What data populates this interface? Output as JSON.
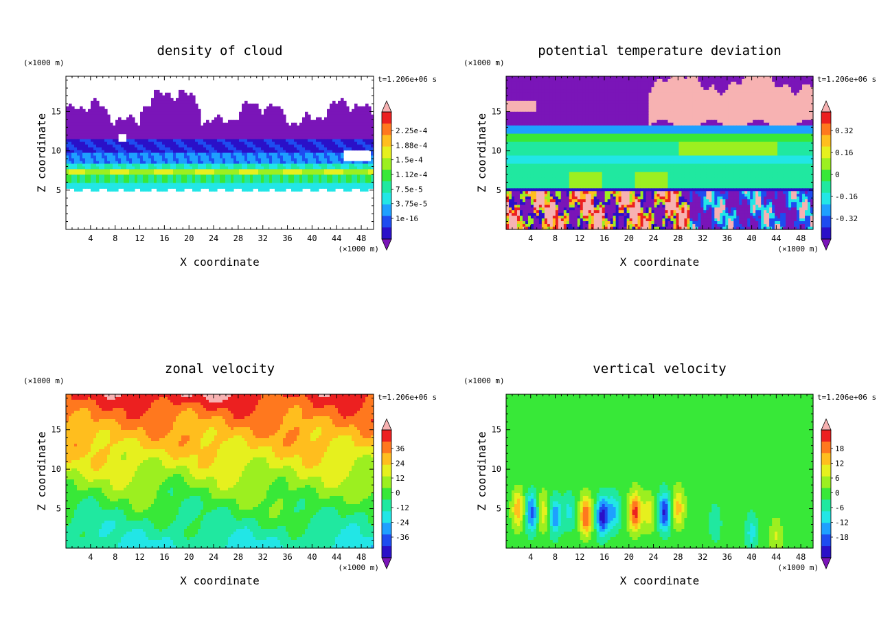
{
  "chart_data": [
    {
      "type": "heatmap",
      "title": "density of cloud",
      "xlabel": "X coordinate",
      "ylabel": "Z coordinate",
      "x_unit": "(×1000 m)",
      "y_unit": "(×1000 m)",
      "time_label": "t=1.206e+06 s",
      "xlim": [
        0,
        50
      ],
      "ylim": [
        0,
        19.5
      ],
      "x_ticks": [
        "4",
        "8",
        "12",
        "16",
        "20",
        "24",
        "28",
        "32",
        "36",
        "40",
        "44",
        "48"
      ],
      "y_ticks": [
        "5",
        "10",
        "15"
      ],
      "colorbar": {
        "labels": [
          "2.25e-4",
          "1.88e-4",
          "1.5e-4",
          "1.12e-4",
          "7.5e-5",
          "3.75e-5",
          "1e-16"
        ],
        "levels": [
          0.000225,
          0.000188,
          0.00015,
          0.000112,
          7.5e-05,
          3.75e-05,
          1e-16
        ]
      },
      "field": "cloud"
    },
    {
      "type": "heatmap",
      "title": "potential temperature deviation",
      "xlabel": "X coordinate",
      "ylabel": "Z coordinate",
      "x_unit": "(×1000 m)",
      "y_unit": "(×1000 m)",
      "time_label": "t=1.206e+06 s",
      "xlim": [
        0,
        50
      ],
      "ylim": [
        0,
        19.5
      ],
      "x_ticks": [
        "4",
        "8",
        "12",
        "16",
        "20",
        "24",
        "28",
        "32",
        "36",
        "40",
        "44",
        "48"
      ],
      "y_ticks": [
        "5",
        "10",
        "15"
      ],
      "colorbar": {
        "labels": [
          "0.32",
          "0.16",
          "0",
          "-0.16",
          "-0.32"
        ],
        "levels": [
          0.32,
          0.16,
          0,
          -0.16,
          -0.32
        ]
      },
      "field": "theta"
    },
    {
      "type": "heatmap",
      "title": "zonal velocity",
      "xlabel": "X coordinate",
      "ylabel": "Z coordinate",
      "x_unit": "(×1000 m)",
      "y_unit": "(×1000 m)",
      "time_label": "t=1.206e+06 s",
      "xlim": [
        0,
        50
      ],
      "ylim": [
        0,
        19.5
      ],
      "x_ticks": [
        "4",
        "8",
        "12",
        "16",
        "20",
        "24",
        "28",
        "32",
        "36",
        "40",
        "44",
        "48"
      ],
      "y_ticks": [
        "5",
        "10",
        "15"
      ],
      "colorbar": {
        "labels": [
          "36",
          "24",
          "12",
          "0",
          "-12",
          "-24",
          "-36"
        ],
        "levels": [
          36,
          24,
          12,
          0,
          -12,
          -24,
          -36
        ]
      },
      "field": "zonal"
    },
    {
      "type": "heatmap",
      "title": "vertical velocity",
      "xlabel": "X coordinate",
      "ylabel": "Z coordinate",
      "x_unit": "(×1000 m)",
      "y_unit": "(×1000 m)",
      "time_label": "t=1.206e+06 s",
      "xlim": [
        0,
        50
      ],
      "ylim": [
        0,
        19.5
      ],
      "x_ticks": [
        "4",
        "8",
        "12",
        "16",
        "20",
        "24",
        "28",
        "32",
        "36",
        "40",
        "44",
        "48"
      ],
      "y_ticks": [
        "5",
        "10",
        "15"
      ],
      "colorbar": {
        "labels": [
          "18",
          "12",
          "6",
          "0",
          "-6",
          "-12",
          "-18"
        ],
        "levels": [
          18,
          12,
          6,
          0,
          -6,
          -12,
          -18
        ]
      },
      "field": "vertical"
    }
  ],
  "colormap": [
    "#7a15b8",
    "#2a10c8",
    "#1e4cf0",
    "#1ea0ff",
    "#22e6e6",
    "#20e8a0",
    "#38e838",
    "#9cef20",
    "#e6f01e",
    "#ffbe1e",
    "#ff781e",
    "#ec2020",
    "#f7b2b2"
  ]
}
